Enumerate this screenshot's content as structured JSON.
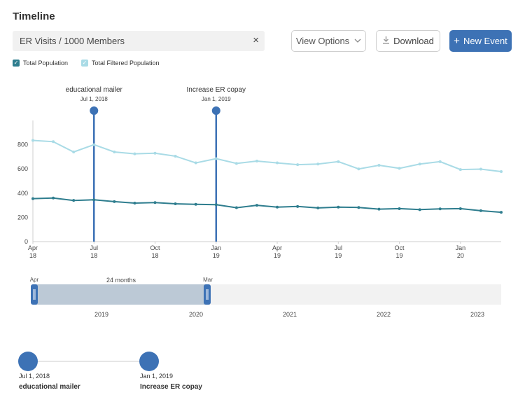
{
  "header": {
    "title": "Timeline"
  },
  "search": {
    "value": "ER Visits / 1000 Members",
    "clear_icon": "×"
  },
  "toolbar": {
    "view_options_label": "View Options",
    "download_label": "Download",
    "new_event_label": "New Event"
  },
  "legend": {
    "total_label": "Total Population",
    "filtered_label": "Total Filtered Population"
  },
  "colors": {
    "total": "#2e7d8e",
    "filtered": "#a9dbe6",
    "accent": "#3d72b5"
  },
  "events": [
    {
      "name": "educational mailer",
      "date": "Jul 1, 2018",
      "month_index": 3
    },
    {
      "name": "Increase ER copay",
      "date": "Jan 1, 2019",
      "month_index": 9
    }
  ],
  "chart_data": {
    "type": "line",
    "y_ticks": [
      "0",
      "200",
      "400",
      "600",
      "800"
    ],
    "ylim": [
      0,
      1000
    ],
    "x_ticks": [
      {
        "month_index": 0,
        "line1": "Apr",
        "line2": "18"
      },
      {
        "month_index": 3,
        "line1": "Jul",
        "line2": "18"
      },
      {
        "month_index": 6,
        "line1": "Oct",
        "line2": "18"
      },
      {
        "month_index": 9,
        "line1": "Jan",
        "line2": "19"
      },
      {
        "month_index": 12,
        "line1": "Apr",
        "line2": "19"
      },
      {
        "month_index": 15,
        "line1": "Jul",
        "line2": "19"
      },
      {
        "month_index": 18,
        "line1": "Oct",
        "line2": "19"
      },
      {
        "month_index": 21,
        "line1": "Jan",
        "line2": "20"
      }
    ],
    "series": [
      {
        "name": "Total Population",
        "values": [
          355,
          360,
          340,
          345,
          330,
          318,
          322,
          312,
          308,
          305,
          280,
          300,
          285,
          290,
          278,
          285,
          282,
          268,
          272,
          264,
          270,
          272,
          255,
          242
        ]
      },
      {
        "name": "Total Filtered Population",
        "values": [
          835,
          825,
          740,
          800,
          740,
          725,
          730,
          705,
          650,
          685,
          645,
          665,
          650,
          635,
          640,
          660,
          600,
          630,
          605,
          640,
          660,
          595,
          598,
          578
        ]
      }
    ]
  },
  "range_slider": {
    "start_label": "Apr",
    "end_label": "Mar",
    "span_label": "24 months",
    "years": [
      "2019",
      "2020",
      "2021",
      "2022",
      "2023"
    ]
  },
  "event_markers": [
    {
      "date": "Jul 1, 2018",
      "name": "educational mailer"
    },
    {
      "date": "Jan 1, 2019",
      "name": "Increase ER copay"
    }
  ]
}
